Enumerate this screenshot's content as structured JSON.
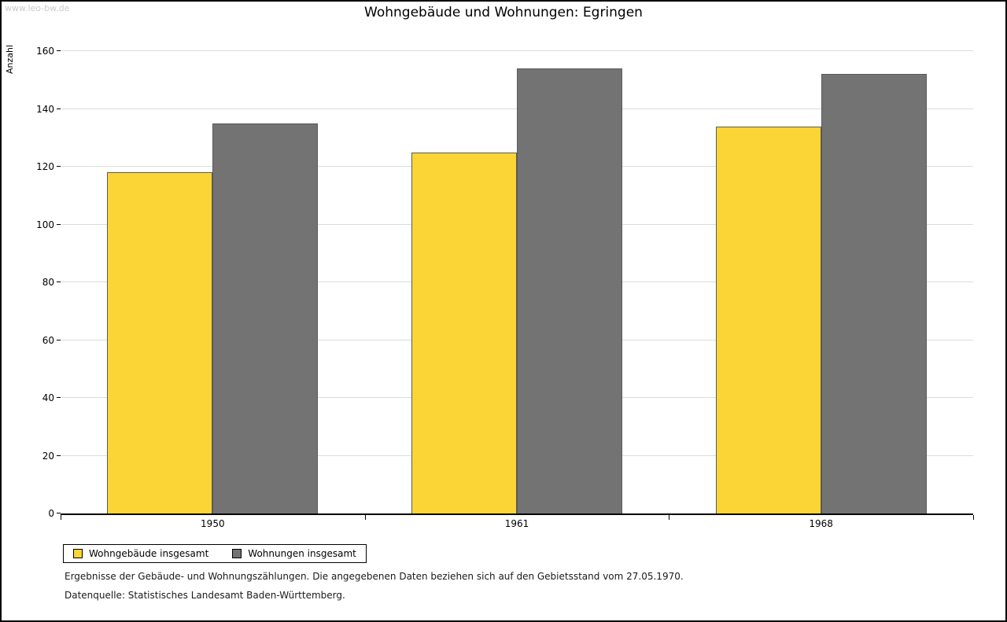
{
  "watermark": "www.leo-bw.de",
  "chart_data": {
    "type": "bar",
    "title": "Wohngebäude und Wohnungen: Egringen",
    "xlabel": "",
    "ylabel": "Anzahl",
    "ylim": [
      0,
      160
    ],
    "ytick_step": 20,
    "grid": true,
    "legend_position": "bottom-left",
    "categories": [
      "1950",
      "1961",
      "1968"
    ],
    "series": [
      {
        "name": "Wohngebäude insgesamt",
        "color": "#fbd536",
        "values": [
          118,
          125,
          134
        ]
      },
      {
        "name": "Wohnungen insgesamt",
        "color": "#737373",
        "values": [
          135,
          154,
          152
        ]
      }
    ]
  },
  "footnotes": [
    "Ergebnisse der Gebäude- und Wohnungszählungen. Die angegebenen Daten beziehen sich auf den Gebietsstand vom 27.05.1970.",
    "Datenquelle: Statistisches Landesamt Baden-Württemberg."
  ]
}
